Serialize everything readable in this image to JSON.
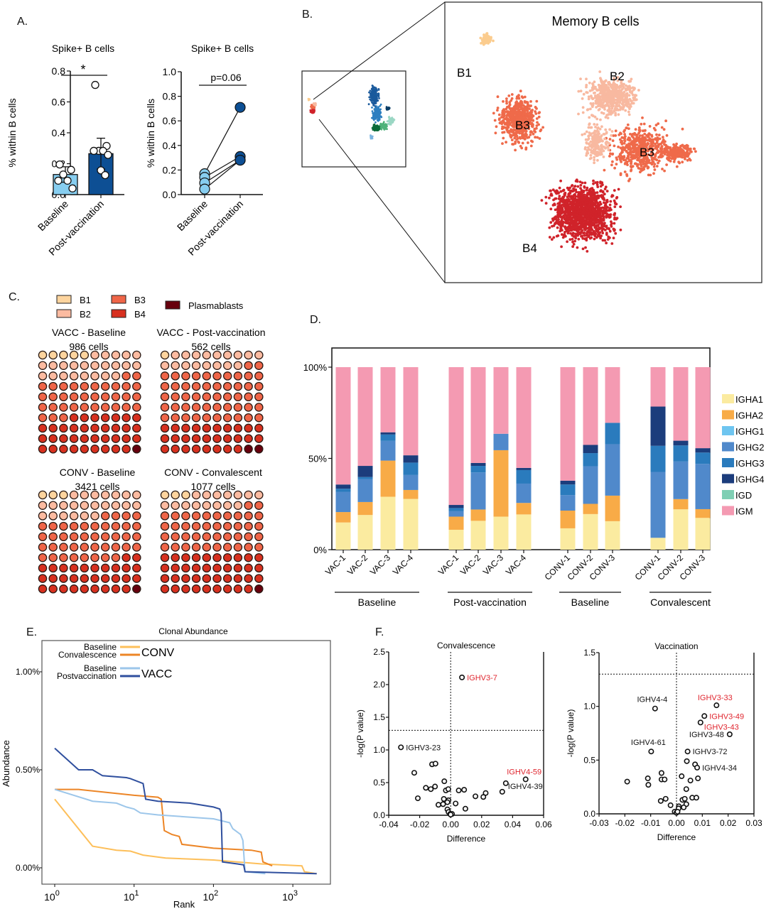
{
  "panels": {
    "A": "A.",
    "B": "B.",
    "C": "C.",
    "D": "D.",
    "E": "E.",
    "F": "F."
  },
  "chart_data": [
    {
      "id": "A-left",
      "type": "bar",
      "title": "Spike+ B cells",
      "ylabel": "% within B cells",
      "ylim": [
        0,
        0.8
      ],
      "yticks": [
        "0.0",
        "0.2",
        "0.4",
        "0.6",
        "0.8"
      ],
      "categories": [
        "Baseline",
        "Post-vaccination"
      ],
      "values": [
        0.13,
        0.265
      ],
      "sd": [
        0.05,
        0.1
      ],
      "points": [
        [
          0.195,
          0.16,
          0.13,
          0.09,
          0.09,
          0.04
        ],
        [
          0.71,
          0.315,
          0.283,
          0.283,
          0.283,
          0.257,
          0.157,
          0.126
        ]
      ],
      "colors": [
        "#87cef0",
        "#0d4f94"
      ],
      "annotation": "*"
    },
    {
      "id": "A-right",
      "type": "line",
      "title": "Spike+ B cells",
      "ylabel": "% within B cells",
      "ylim": [
        0,
        1.0
      ],
      "yticks": [
        "0.0",
        "0.2",
        "0.4",
        "0.6",
        "0.8",
        "1.0"
      ],
      "categories": [
        "Baseline",
        "Post-vaccination"
      ],
      "pairs": [
        [
          0.17,
          0.71
        ],
        [
          0.14,
          0.31
        ],
        [
          0.095,
          0.28
        ],
        [
          0.045,
          0.28
        ]
      ],
      "colors": [
        "#87cef0",
        "#0d4f94"
      ],
      "annotation": "p=0.06"
    },
    {
      "id": "B",
      "type": "scatter",
      "title": "Memory B cells",
      "cluster_labels": [
        "B1",
        "B2",
        "B3",
        "B3",
        "B4"
      ],
      "clusters": [
        {
          "name": "B1",
          "color": "#fbcc8e"
        },
        {
          "name": "B2",
          "color": "#f8b9a0"
        },
        {
          "name": "B3",
          "color": "#ef6a4a"
        },
        {
          "name": "B4",
          "color": "#d0232a"
        }
      ],
      "overview_colors": [
        "#1a5a9c",
        "#2d7fc0",
        "#0b6b3a",
        "#4fb27a",
        "#9bd7c4",
        "#0a3d66",
        "#79b3e0"
      ]
    },
    {
      "id": "C",
      "type": "table",
      "legend": [
        {
          "label": "B1",
          "color": "#fdd49e"
        },
        {
          "label": "B2",
          "color": "#fcbba1"
        },
        {
          "label": "B3",
          "color": "#ef6548"
        },
        {
          "label": "B4",
          "color": "#d7301f"
        },
        {
          "label": "Plasmablasts",
          "color": "#67000d"
        }
      ],
      "waffles": [
        {
          "title": "VACC - Baseline",
          "subtitle": "986 cells",
          "counts": {
            "B1": 5,
            "B2": 23,
            "B3": 35,
            "B4": 36,
            "Plasmablasts": 1
          }
        },
        {
          "title": "VACC - Post-vaccination",
          "subtitle": "562 cells",
          "counts": {
            "B1": 1,
            "B2": 17,
            "B3": 52,
            "B4": 28,
            "Plasmablasts": 2
          }
        },
        {
          "title": "CONV - Baseline",
          "subtitle": "3421 cells",
          "counts": {
            "B1": 3,
            "B2": 23,
            "B3": 42,
            "B4": 31,
            "Plasmablasts": 1
          }
        },
        {
          "title": "CONV - Convalescent",
          "subtitle": "1077 cells",
          "counts": {
            "B1": 3,
            "B2": 15,
            "B3": 42,
            "B4": 39,
            "Plasmablasts": 1
          }
        }
      ]
    },
    {
      "id": "D",
      "type": "bar",
      "stacked": true,
      "ylim": [
        0,
        100
      ],
      "yticks": [
        "0%",
        "50%",
        "100%"
      ],
      "series_names": [
        "IGHA1",
        "IGHA2",
        "IGHG1",
        "IGHG2",
        "IGHG3",
        "IGHG4",
        "IGD",
        "IGM"
      ],
      "series_colors": [
        "#fbeba0",
        "#f8ab47",
        "#6ec5f0",
        "#5089cb",
        "#2a7bbd",
        "#1c3d7c",
        "#7fcfb4",
        "#f49ab2"
      ],
      "groups": [
        {
          "label": "Baseline",
          "categories": [
            "VAC-1",
            "VAC-2",
            "VAC-3",
            "VAC-4"
          ]
        },
        {
          "label": "Post-vaccination",
          "categories": [
            "VAC-1",
            "VAC-2",
            "VAC-3",
            "VAC-4"
          ]
        },
        {
          "label": "Baseline",
          "categories": [
            "CONV-1",
            "CONV-2",
            "CONV-3"
          ]
        },
        {
          "label": "Convalescent",
          "categories": [
            "CONV-1",
            "CONV-2",
            "CONV-3"
          ]
        }
      ],
      "values": [
        [
          14.9,
          5.7,
          0,
          11.1,
          1.7,
          2.3,
          0,
          64.3
        ],
        [
          19.0,
          7.1,
          0,
          12.6,
          1.1,
          6.1,
          0,
          54.1
        ],
        [
          29.0,
          19.8,
          0,
          10.8,
          3.5,
          1.2,
          0,
          35.7
        ],
        [
          27.8,
          4.9,
          0,
          8.2,
          6.8,
          4.0,
          0,
          48.3
        ],
        [
          10.9,
          7.2,
          0,
          3.1,
          1.6,
          1.7,
          0,
          75.5
        ],
        [
          15.8,
          6.2,
          0,
          20.3,
          3.6,
          1.6,
          0,
          52.5
        ],
        [
          18.1,
          36.4,
          0,
          9.0,
          0,
          0,
          0,
          36.5
        ],
        [
          19.3,
          6.3,
          0,
          10.6,
          7.4,
          1.2,
          0,
          55.2
        ],
        [
          11.7,
          9.7,
          0,
          8.5,
          5.8,
          2.1,
          0,
          62.2
        ],
        [
          19.5,
          5.6,
          0,
          20.6,
          7.2,
          4.5,
          0,
          42.6
        ],
        [
          15.6,
          14.0,
          0,
          28.2,
          11.7,
          0,
          0,
          30.5
        ],
        [
          6.5,
          0,
          0,
          36.1,
          14.3,
          21.5,
          0,
          21.6
        ],
        [
          22.1,
          5.6,
          0,
          20.6,
          8.8,
          2.6,
          0,
          40.3
        ],
        [
          17.4,
          4.8,
          0,
          24.8,
          6.2,
          2.4,
          0,
          44.4
        ]
      ]
    },
    {
      "id": "E",
      "type": "line",
      "title": "Clonal Abundance",
      "xlabel": "Rank",
      "ylabel": "Abundance",
      "xscale": "log",
      "xlim": [
        0.7,
        3000
      ],
      "ylim": [
        -0.07,
        1.18
      ],
      "xticks": [
        {
          "base": "10",
          "exp": "0"
        },
        {
          "base": "10",
          "exp": "1"
        },
        {
          "base": "10",
          "exp": "2"
        },
        {
          "base": "10",
          "exp": "3"
        }
      ],
      "yticks": [
        "0.00%",
        "0.50%",
        "1.00%"
      ],
      "legend": [
        {
          "group": "CONV",
          "items": [
            "Baseline",
            "Convalescence"
          ]
        },
        {
          "group": "VACC",
          "items": [
            "Baseline",
            "Postvaccination"
          ]
        }
      ],
      "series": [
        {
          "name": "CONV Baseline",
          "color": "#fdbf5a",
          "points": [
            [
              1,
              0.35
            ],
            [
              3,
              0.11
            ],
            [
              6,
              0.09
            ],
            [
              9,
              0.085
            ],
            [
              13,
              0.065
            ],
            [
              25,
              0.05
            ],
            [
              100,
              0.04
            ],
            [
              200,
              0.03
            ],
            [
              400,
              0.02
            ],
            [
              1300,
              0.01
            ],
            [
              1400,
              -0.02
            ],
            [
              2000,
              -0.03
            ]
          ]
        },
        {
          "name": "CONV Convalescence",
          "color": "#ec8526",
          "points": [
            [
              1,
              0.4
            ],
            [
              2,
              0.4
            ],
            [
              10,
              0.37
            ],
            [
              20,
              0.36
            ],
            [
              22,
              0.35
            ],
            [
              24,
              0.19
            ],
            [
              30,
              0.17
            ],
            [
              37,
              0.16
            ],
            [
              40,
              0.12
            ],
            [
              100,
              0.1
            ],
            [
              300,
              0.09
            ],
            [
              400,
              0.08
            ],
            [
              420,
              0.03
            ],
            [
              550,
              0.01
            ]
          ]
        },
        {
          "name": "VACC Baseline",
          "color": "#9cc6ea",
          "points": [
            [
              1,
              0.4
            ],
            [
              3,
              0.34
            ],
            [
              6,
              0.33
            ],
            [
              8,
              0.31
            ],
            [
              10,
              0.3
            ],
            [
              12,
              0.28
            ],
            [
              20,
              0.27
            ],
            [
              100,
              0.25
            ],
            [
              160,
              0.23
            ],
            [
              175,
              0.2
            ],
            [
              220,
              0.17
            ],
            [
              235,
              0.14
            ],
            [
              250,
              -0.02
            ],
            [
              450,
              -0.03
            ]
          ]
        },
        {
          "name": "VACC Postvaccination",
          "color": "#2f4f9e",
          "points": [
            [
              1,
              0.61
            ],
            [
              2,
              0.5
            ],
            [
              3,
              0.5
            ],
            [
              4,
              0.47
            ],
            [
              8,
              0.46
            ],
            [
              9,
              0.455
            ],
            [
              13,
              0.43
            ],
            [
              14,
              0.35
            ],
            [
              20,
              0.34
            ],
            [
              50,
              0.33
            ],
            [
              100,
              0.31
            ],
            [
              120,
              0.3
            ],
            [
              125,
              0.28
            ],
            [
              130,
              0.03
            ],
            [
              200,
              0.02
            ],
            [
              240,
              0.015
            ],
            [
              250,
              -0.02
            ],
            [
              2000,
              -0.03
            ]
          ]
        }
      ]
    },
    {
      "id": "F-left",
      "type": "scatter",
      "title": "Convalescence",
      "xlabel": "Difference",
      "ylabel": "-log(P value)",
      "xlim": [
        -0.04,
        0.06
      ],
      "ylim": [
        0,
        2.5
      ],
      "xticks": [
        "-0.04",
        "-0.02",
        "0.00",
        "0.02",
        "0.04",
        "0.06"
      ],
      "yticks": [
        "0.0",
        "0.5",
        "1.0",
        "1.5",
        "2.0",
        "2.5"
      ],
      "threshold_y": 1.3,
      "threshold_x": 0,
      "points": [
        [
          0.0073,
          2.11
        ],
        [
          -0.0321,
          1.04
        ],
        [
          -0.0235,
          0.65
        ],
        [
          -0.012,
          0.78
        ],
        [
          -0.0098,
          0.79
        ],
        [
          -0.0041,
          0.52
        ],
        [
          -0.016,
          0.42
        ],
        [
          -0.0128,
          0.4
        ],
        [
          -0.0101,
          0.44
        ],
        [
          -0.0031,
          0.38
        ],
        [
          -0.0015,
          0.4
        ],
        [
          -0.0212,
          0.26
        ],
        [
          -0.0044,
          0.25
        ],
        [
          -0.0014,
          0.23
        ],
        [
          -0.0079,
          0.16
        ],
        [
          -0.0049,
          0.17
        ],
        [
          -0.0021,
          0.2
        ],
        [
          0.0032,
          0.18
        ],
        [
          0.0052,
          0.38
        ],
        [
          0.0087,
          0.39
        ],
        [
          0.0095,
          0.1
        ],
        [
          -0.0021,
          0.09
        ],
        [
          -0.0014,
          0.05
        ],
        [
          -0.0003,
          0.02
        ],
        [
          0.0009,
          0.02
        ],
        [
          0.0,
          0.01
        ],
        [
          0.016,
          0.29
        ],
        [
          0.0211,
          0.28
        ],
        [
          0.0226,
          0.34
        ],
        [
          0.0333,
          0.36
        ],
        [
          0.0356,
          0.49
        ],
        [
          0.0484,
          0.55
        ]
      ],
      "labels": [
        {
          "text": "IGHV3-7",
          "x": 0.0073,
          "y": 2.11,
          "color": "#e0262f",
          "side": "right"
        },
        {
          "text": "IGHV3-23",
          "x": -0.0321,
          "y": 1.04,
          "color": "#111111",
          "side": "right"
        },
        {
          "text": "IGHV4-59",
          "x": 0.0484,
          "y": 0.55,
          "color": "#e0262f",
          "side": "above"
        },
        {
          "text": "IGHV4-39",
          "x": 0.0356,
          "y": 0.49,
          "color": "#111111",
          "side": "below-right"
        }
      ]
    },
    {
      "id": "F-right",
      "type": "scatter",
      "title": "Vaccination",
      "xlabel": "Difference",
      "ylabel": "-log(P value)",
      "xlim": [
        -0.03,
        0.03
      ],
      "ylim": [
        0,
        1.5
      ],
      "xticks": [
        "-0.03",
        "-0.02",
        "-0.01",
        "0.00",
        "0.01",
        "0.02",
        "0.03"
      ],
      "yticks": [
        "0.0",
        "0.5",
        "1.0",
        "1.5"
      ],
      "threshold_y": 1.3,
      "threshold_x": 0,
      "points": [
        [
          -0.0083,
          0.98
        ],
        [
          0.0155,
          1.01
        ],
        [
          0.0108,
          0.91
        ],
        [
          0.0093,
          0.85
        ],
        [
          0.0206,
          0.74
        ],
        [
          -0.0098,
          0.58
        ],
        [
          0.0043,
          0.58
        ],
        [
          0.004,
          0.49
        ],
        [
          0.0072,
          0.46
        ],
        [
          0.008,
          0.43
        ],
        [
          -0.0191,
          0.3
        ],
        [
          -0.0111,
          0.33
        ],
        [
          -0.0109,
          0.27
        ],
        [
          -0.0058,
          0.38
        ],
        [
          -0.0058,
          0.32
        ],
        [
          -0.0046,
          0.32
        ],
        [
          0.002,
          0.35
        ],
        [
          0.0054,
          0.31
        ],
        [
          0.0083,
          0.33
        ],
        [
          0.0038,
          0.23
        ],
        [
          -0.0061,
          0.12
        ],
        [
          -0.0042,
          0.14
        ],
        [
          -0.0023,
          0.08
        ],
        [
          0.0023,
          0.13
        ],
        [
          0.0032,
          0.14
        ],
        [
          0.0061,
          0.15
        ],
        [
          0.0077,
          0.15
        ],
        [
          0.0038,
          0.09
        ],
        [
          0.0028,
          0.06
        ],
        [
          0.0009,
          0.07
        ],
        [
          0.0008,
          0.05
        ],
        [
          -0.0007,
          0.02
        ],
        [
          0.0,
          0.01
        ],
        [
          0.0004,
          0.02
        ]
      ],
      "labels": [
        {
          "text": "IGHV4-4",
          "x": -0.0083,
          "y": 0.98,
          "color": "#111111",
          "side": "above-left"
        },
        {
          "text": "IGHV3-33",
          "x": 0.0155,
          "y": 1.01,
          "color": "#e0262f",
          "side": "above"
        },
        {
          "text": "IGHV3-49",
          "x": 0.0108,
          "y": 0.91,
          "color": "#e0262f",
          "side": "right"
        },
        {
          "text": "IGHV3-43",
          "x": 0.0093,
          "y": 0.85,
          "color": "#e0262f",
          "side": "right-low"
        },
        {
          "text": "IGHV3-48",
          "x": 0.0206,
          "y": 0.74,
          "color": "#111111",
          "side": "left"
        },
        {
          "text": "IGHV4-61",
          "x": -0.0098,
          "y": 0.58,
          "color": "#111111",
          "side": "above-left"
        },
        {
          "text": "IGHV3-72",
          "x": 0.0043,
          "y": 0.58,
          "color": "#111111",
          "side": "right"
        },
        {
          "text": "IGHV4-34",
          "x": 0.008,
          "y": 0.43,
          "color": "#111111",
          "side": "right"
        }
      ]
    }
  ]
}
